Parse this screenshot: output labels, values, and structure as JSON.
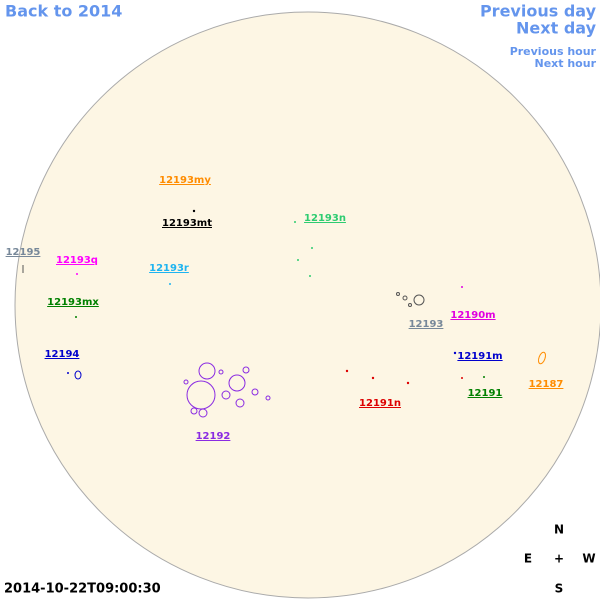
{
  "nav": {
    "back": "Back to 2014",
    "previous_day": "Previous day",
    "next_day": "Next day",
    "previous_hour": "Previous hour",
    "next_hour": "Next hour"
  },
  "regions": [
    {
      "label": "12193my",
      "color": "#ff8c00"
    },
    {
      "label": "12193mt",
      "color": "#000000"
    },
    {
      "label": "12193n",
      "color": "#2ecc71"
    },
    {
      "label": "12195",
      "color": "#778899"
    },
    {
      "label": "12193q",
      "color": "#ff00ff"
    },
    {
      "label": "12193r",
      "color": "#1eb4f0"
    },
    {
      "label": "12193mx",
      "color": "#008000"
    },
    {
      "label": "12193",
      "color": "#778899"
    },
    {
      "label": "12190m",
      "color": "#e000e0"
    },
    {
      "label": "12194",
      "color": "#0000cc"
    },
    {
      "label": "12191m",
      "color": "#0000cc"
    },
    {
      "label": "12187",
      "color": "#ff8c00"
    },
    {
      "label": "12191n",
      "color": "#dd0000"
    },
    {
      "label": "12191",
      "color": "#008000"
    },
    {
      "label": "12192",
      "color": "#8a2be2"
    }
  ],
  "timestamp": "2014-10-22T09:00:30",
  "compass": {
    "north": "N",
    "east": "E",
    "center": "+",
    "west": "W",
    "south": "S"
  }
}
